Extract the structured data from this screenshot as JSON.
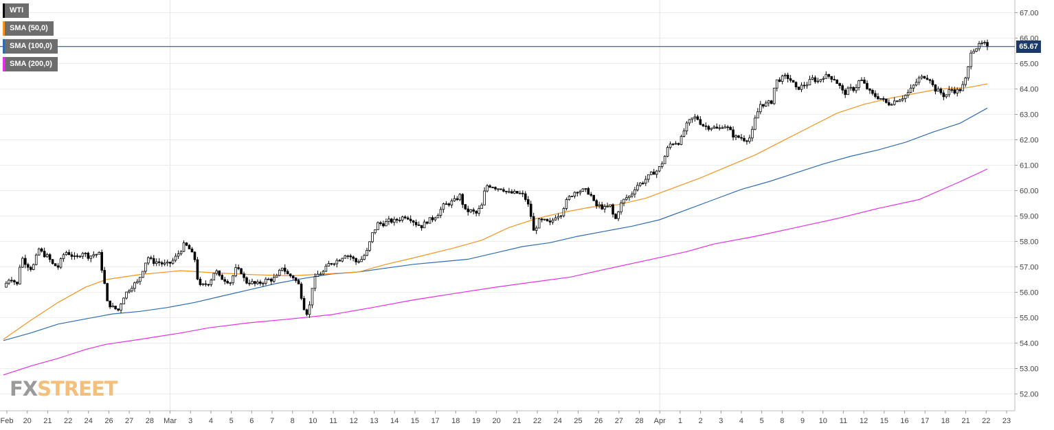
{
  "legend": [
    {
      "label": "WTI",
      "color": "#000000"
    },
    {
      "label": "SMA (50,0)",
      "color": "#f7931e"
    },
    {
      "label": "SMA (100,0)",
      "color": "#2b6cb5"
    },
    {
      "label": "SMA (200,0)",
      "color": "#e62fe6"
    }
  ],
  "price_tag": "65.67",
  "logo": {
    "fx": "FX",
    "street": "STREET"
  },
  "chart_data": {
    "type": "candlestick",
    "y_ticks": [
      "52.00",
      "53.00",
      "54.00",
      "55.00",
      "56.00",
      "57.00",
      "58.00",
      "59.00",
      "60.00",
      "61.00",
      "62.00",
      "63.00",
      "64.00",
      "65.00",
      "66.00",
      "67.00"
    ],
    "ylim": [
      51.45,
      67.3
    ],
    "x_labels": [
      "Feb",
      "20",
      "21",
      "22",
      "24",
      "26",
      "27",
      "28",
      "Mar",
      "3",
      "4",
      "5",
      "6",
      "7",
      "8",
      "10",
      "11",
      "12",
      "13",
      "14",
      "15",
      "17",
      "18",
      "19",
      "20",
      "21",
      "22",
      "24",
      "25",
      "26",
      "27",
      "28",
      "Apr",
      "1",
      "2",
      "3",
      "4",
      "5",
      "8",
      "9",
      "10",
      "11",
      "12",
      "15",
      "16",
      "17",
      "18",
      "21",
      "22",
      "23"
    ],
    "last_price": 65.67,
    "close_path": [
      [
        0,
        56.2
      ],
      [
        10,
        56.6
      ],
      [
        20,
        56.3
      ],
      [
        26,
        57.4
      ],
      [
        34,
        57.1
      ],
      [
        42,
        56.9
      ],
      [
        52,
        57.7
      ],
      [
        58,
        57.5
      ],
      [
        65,
        57.4
      ],
      [
        72,
        57.1
      ],
      [
        80,
        57.0
      ],
      [
        90,
        57.6
      ],
      [
        98,
        57.5
      ],
      [
        106,
        57.3
      ],
      [
        115,
        57.6
      ],
      [
        125,
        57.4
      ],
      [
        133,
        57.5
      ],
      [
        140,
        57.5
      ],
      [
        147,
        56.5
      ],
      [
        152,
        55.6
      ],
      [
        160,
        55.4
      ],
      [
        168,
        55.3
      ],
      [
        175,
        55.8
      ],
      [
        183,
        56.1
      ],
      [
        190,
        56.3
      ],
      [
        197,
        56.4
      ],
      [
        204,
        56.9
      ],
      [
        211,
        57.4
      ],
      [
        218,
        57.2
      ],
      [
        226,
        57.2
      ],
      [
        234,
        57.1
      ],
      [
        242,
        57.1
      ],
      [
        250,
        57.3
      ],
      [
        258,
        57.6
      ],
      [
        265,
        57.9
      ],
      [
        272,
        57.7
      ],
      [
        280,
        57.3
      ],
      [
        286,
        56.2
      ],
      [
        294,
        56.3
      ],
      [
        302,
        56.4
      ],
      [
        310,
        56.9
      ],
      [
        316,
        56.6
      ],
      [
        324,
        56.5
      ],
      [
        332,
        56.4
      ],
      [
        340,
        56.9
      ],
      [
        348,
        56.8
      ],
      [
        354,
        56.4
      ],
      [
        362,
        56.4
      ],
      [
        370,
        56.3
      ],
      [
        378,
        56.4
      ],
      [
        386,
        56.5
      ],
      [
        393,
        56.5
      ],
      [
        400,
        56.6
      ],
      [
        408,
        57.0
      ],
      [
        416,
        56.7
      ],
      [
        424,
        56.6
      ],
      [
        432,
        56.3
      ],
      [
        440,
        55.4
      ],
      [
        446,
        55.1
      ],
      [
        453,
        56.4
      ],
      [
        460,
        56.7
      ],
      [
        468,
        56.8
      ],
      [
        476,
        57.1
      ],
      [
        484,
        57.2
      ],
      [
        492,
        57.3
      ],
      [
        500,
        57.5
      ],
      [
        508,
        57.4
      ],
      [
        516,
        57.2
      ],
      [
        524,
        57.3
      ],
      [
        532,
        57.6
      ],
      [
        540,
        58.3
      ],
      [
        548,
        58.7
      ],
      [
        556,
        58.7
      ],
      [
        564,
        58.8
      ],
      [
        572,
        58.8
      ],
      [
        580,
        58.9
      ],
      [
        588,
        59.0
      ],
      [
        596,
        58.9
      ],
      [
        604,
        58.7
      ],
      [
        612,
        58.6
      ],
      [
        620,
        58.8
      ],
      [
        628,
        58.9
      ],
      [
        636,
        59.1
      ],
      [
        644,
        59.4
      ],
      [
        652,
        59.5
      ],
      [
        660,
        59.6
      ],
      [
        668,
        59.8
      ],
      [
        676,
        59.2
      ],
      [
        684,
        59.2
      ],
      [
        692,
        59.1
      ],
      [
        700,
        59.4
      ],
      [
        706,
        60.2
      ],
      [
        714,
        60.2
      ],
      [
        722,
        60.1
      ],
      [
        730,
        60.1
      ],
      [
        738,
        59.9
      ],
      [
        746,
        59.9
      ],
      [
        754,
        59.9
      ],
      [
        762,
        59.8
      ],
      [
        770,
        59.3
      ],
      [
        776,
        58.4
      ],
      [
        784,
        58.8
      ],
      [
        792,
        58.8
      ],
      [
        800,
        58.7
      ],
      [
        808,
        59.0
      ],
      [
        816,
        59.1
      ],
      [
        822,
        59.5
      ],
      [
        830,
        59.8
      ],
      [
        838,
        60.0
      ],
      [
        846,
        60.0
      ],
      [
        854,
        60.0
      ],
      [
        860,
        59.8
      ],
      [
        866,
        59.4
      ],
      [
        872,
        59.4
      ],
      [
        880,
        59.3
      ],
      [
        888,
        59.4
      ],
      [
        895,
        58.8
      ],
      [
        902,
        59.4
      ],
      [
        910,
        59.7
      ],
      [
        918,
        59.8
      ],
      [
        926,
        60.2
      ],
      [
        934,
        60.3
      ],
      [
        942,
        60.5
      ],
      [
        950,
        60.7
      ],
      [
        958,
        60.8
      ],
      [
        966,
        61.2
      ],
      [
        974,
        61.8
      ],
      [
        982,
        61.9
      ],
      [
        990,
        61.9
      ],
      [
        998,
        62.5
      ],
      [
        1006,
        62.8
      ],
      [
        1014,
        62.9
      ],
      [
        1022,
        62.6
      ],
      [
        1030,
        62.5
      ],
      [
        1038,
        62.5
      ],
      [
        1046,
        62.4
      ],
      [
        1054,
        62.6
      ],
      [
        1062,
        62.4
      ],
      [
        1070,
        62.1
      ],
      [
        1078,
        62.1
      ],
      [
        1086,
        62.0
      ],
      [
        1094,
        62.1
      ],
      [
        1100,
        62.8
      ],
      [
        1108,
        63.4
      ],
      [
        1116,
        63.4
      ],
      [
        1124,
        63.5
      ],
      [
        1130,
        64.3
      ],
      [
        1138,
        64.4
      ],
      [
        1146,
        64.5
      ],
      [
        1154,
        64.3
      ],
      [
        1160,
        64.0
      ],
      [
        1168,
        64.1
      ],
      [
        1176,
        64.2
      ],
      [
        1184,
        64.4
      ],
      [
        1192,
        64.3
      ],
      [
        1200,
        64.5
      ],
      [
        1208,
        64.5
      ],
      [
        1216,
        64.4
      ],
      [
        1224,
        64.1
      ],
      [
        1230,
        63.8
      ],
      [
        1238,
        64.0
      ],
      [
        1246,
        64.0
      ],
      [
        1254,
        64.4
      ],
      [
        1262,
        64.1
      ],
      [
        1270,
        63.8
      ],
      [
        1278,
        63.7
      ],
      [
        1286,
        63.6
      ],
      [
        1294,
        63.4
      ],
      [
        1302,
        63.5
      ],
      [
        1310,
        63.6
      ],
      [
        1318,
        63.7
      ],
      [
        1326,
        63.9
      ],
      [
        1334,
        64.2
      ],
      [
        1340,
        64.4
      ],
      [
        1348,
        64.5
      ],
      [
        1356,
        64.4
      ],
      [
        1362,
        64.0
      ],
      [
        1370,
        63.9
      ],
      [
        1378,
        63.7
      ],
      [
        1386,
        64.0
      ],
      [
        1394,
        63.9
      ],
      [
        1402,
        64.0
      ],
      [
        1410,
        64.5
      ],
      [
        1416,
        65.5
      ],
      [
        1422,
        65.6
      ],
      [
        1428,
        65.7
      ],
      [
        1434,
        65.8
      ],
      [
        1440,
        65.67
      ]
    ],
    "sma_50": [
      [
        0,
        54.15
      ],
      [
        40,
        54.9
      ],
      [
        80,
        55.6
      ],
      [
        120,
        56.2
      ],
      [
        150,
        56.5
      ],
      [
        200,
        56.7
      ],
      [
        260,
        56.85
      ],
      [
        300,
        56.78
      ],
      [
        360,
        56.7
      ],
      [
        420,
        56.65
      ],
      [
        470,
        56.72
      ],
      [
        520,
        56.8
      ],
      [
        560,
        57.1
      ],
      [
        600,
        57.35
      ],
      [
        660,
        57.75
      ],
      [
        700,
        58.05
      ],
      [
        740,
        58.55
      ],
      [
        780,
        58.9
      ],
      [
        820,
        59.15
      ],
      [
        860,
        59.35
      ],
      [
        900,
        59.45
      ],
      [
        940,
        59.7
      ],
      [
        980,
        60.1
      ],
      [
        1020,
        60.5
      ],
      [
        1060,
        60.95
      ],
      [
        1100,
        61.4
      ],
      [
        1140,
        61.95
      ],
      [
        1180,
        62.5
      ],
      [
        1220,
        63.05
      ],
      [
        1260,
        63.4
      ],
      [
        1300,
        63.65
      ],
      [
        1340,
        63.85
      ],
      [
        1370,
        64.0
      ],
      [
        1410,
        64.05
      ],
      [
        1440,
        64.2
      ]
    ],
    "sma_100": [
      [
        0,
        54.1
      ],
      [
        40,
        54.4
      ],
      [
        80,
        54.75
      ],
      [
        120,
        54.95
      ],
      [
        160,
        55.15
      ],
      [
        200,
        55.25
      ],
      [
        240,
        55.4
      ],
      [
        280,
        55.6
      ],
      [
        320,
        55.85
      ],
      [
        360,
        56.1
      ],
      [
        400,
        56.35
      ],
      [
        440,
        56.55
      ],
      [
        480,
        56.72
      ],
      [
        520,
        56.8
      ],
      [
        560,
        56.95
      ],
      [
        600,
        57.1
      ],
      [
        640,
        57.2
      ],
      [
        680,
        57.3
      ],
      [
        720,
        57.55
      ],
      [
        760,
        57.8
      ],
      [
        800,
        57.95
      ],
      [
        840,
        58.2
      ],
      [
        880,
        58.4
      ],
      [
        920,
        58.6
      ],
      [
        960,
        58.85
      ],
      [
        1000,
        59.25
      ],
      [
        1040,
        59.65
      ],
      [
        1080,
        60.05
      ],
      [
        1120,
        60.35
      ],
      [
        1160,
        60.7
      ],
      [
        1200,
        61.05
      ],
      [
        1240,
        61.35
      ],
      [
        1280,
        61.6
      ],
      [
        1320,
        61.9
      ],
      [
        1360,
        62.3
      ],
      [
        1400,
        62.65
      ],
      [
        1440,
        63.25
      ]
    ],
    "sma_200": [
      [
        0,
        52.75
      ],
      [
        40,
        53.1
      ],
      [
        80,
        53.4
      ],
      [
        120,
        53.75
      ],
      [
        150,
        53.95
      ],
      [
        200,
        54.15
      ],
      [
        260,
        54.4
      ],
      [
        300,
        54.6
      ],
      [
        360,
        54.8
      ],
      [
        420,
        54.95
      ],
      [
        480,
        55.12
      ],
      [
        540,
        55.4
      ],
      [
        600,
        55.7
      ],
      [
        660,
        55.95
      ],
      [
        720,
        56.2
      ],
      [
        780,
        56.42
      ],
      [
        830,
        56.6
      ],
      [
        880,
        56.9
      ],
      [
        940,
        57.25
      ],
      [
        1000,
        57.6
      ],
      [
        1040,
        57.9
      ],
      [
        1100,
        58.2
      ],
      [
        1160,
        58.55
      ],
      [
        1220,
        58.9
      ],
      [
        1280,
        59.3
      ],
      [
        1340,
        59.65
      ],
      [
        1400,
        60.35
      ],
      [
        1440,
        60.85
      ]
    ]
  }
}
